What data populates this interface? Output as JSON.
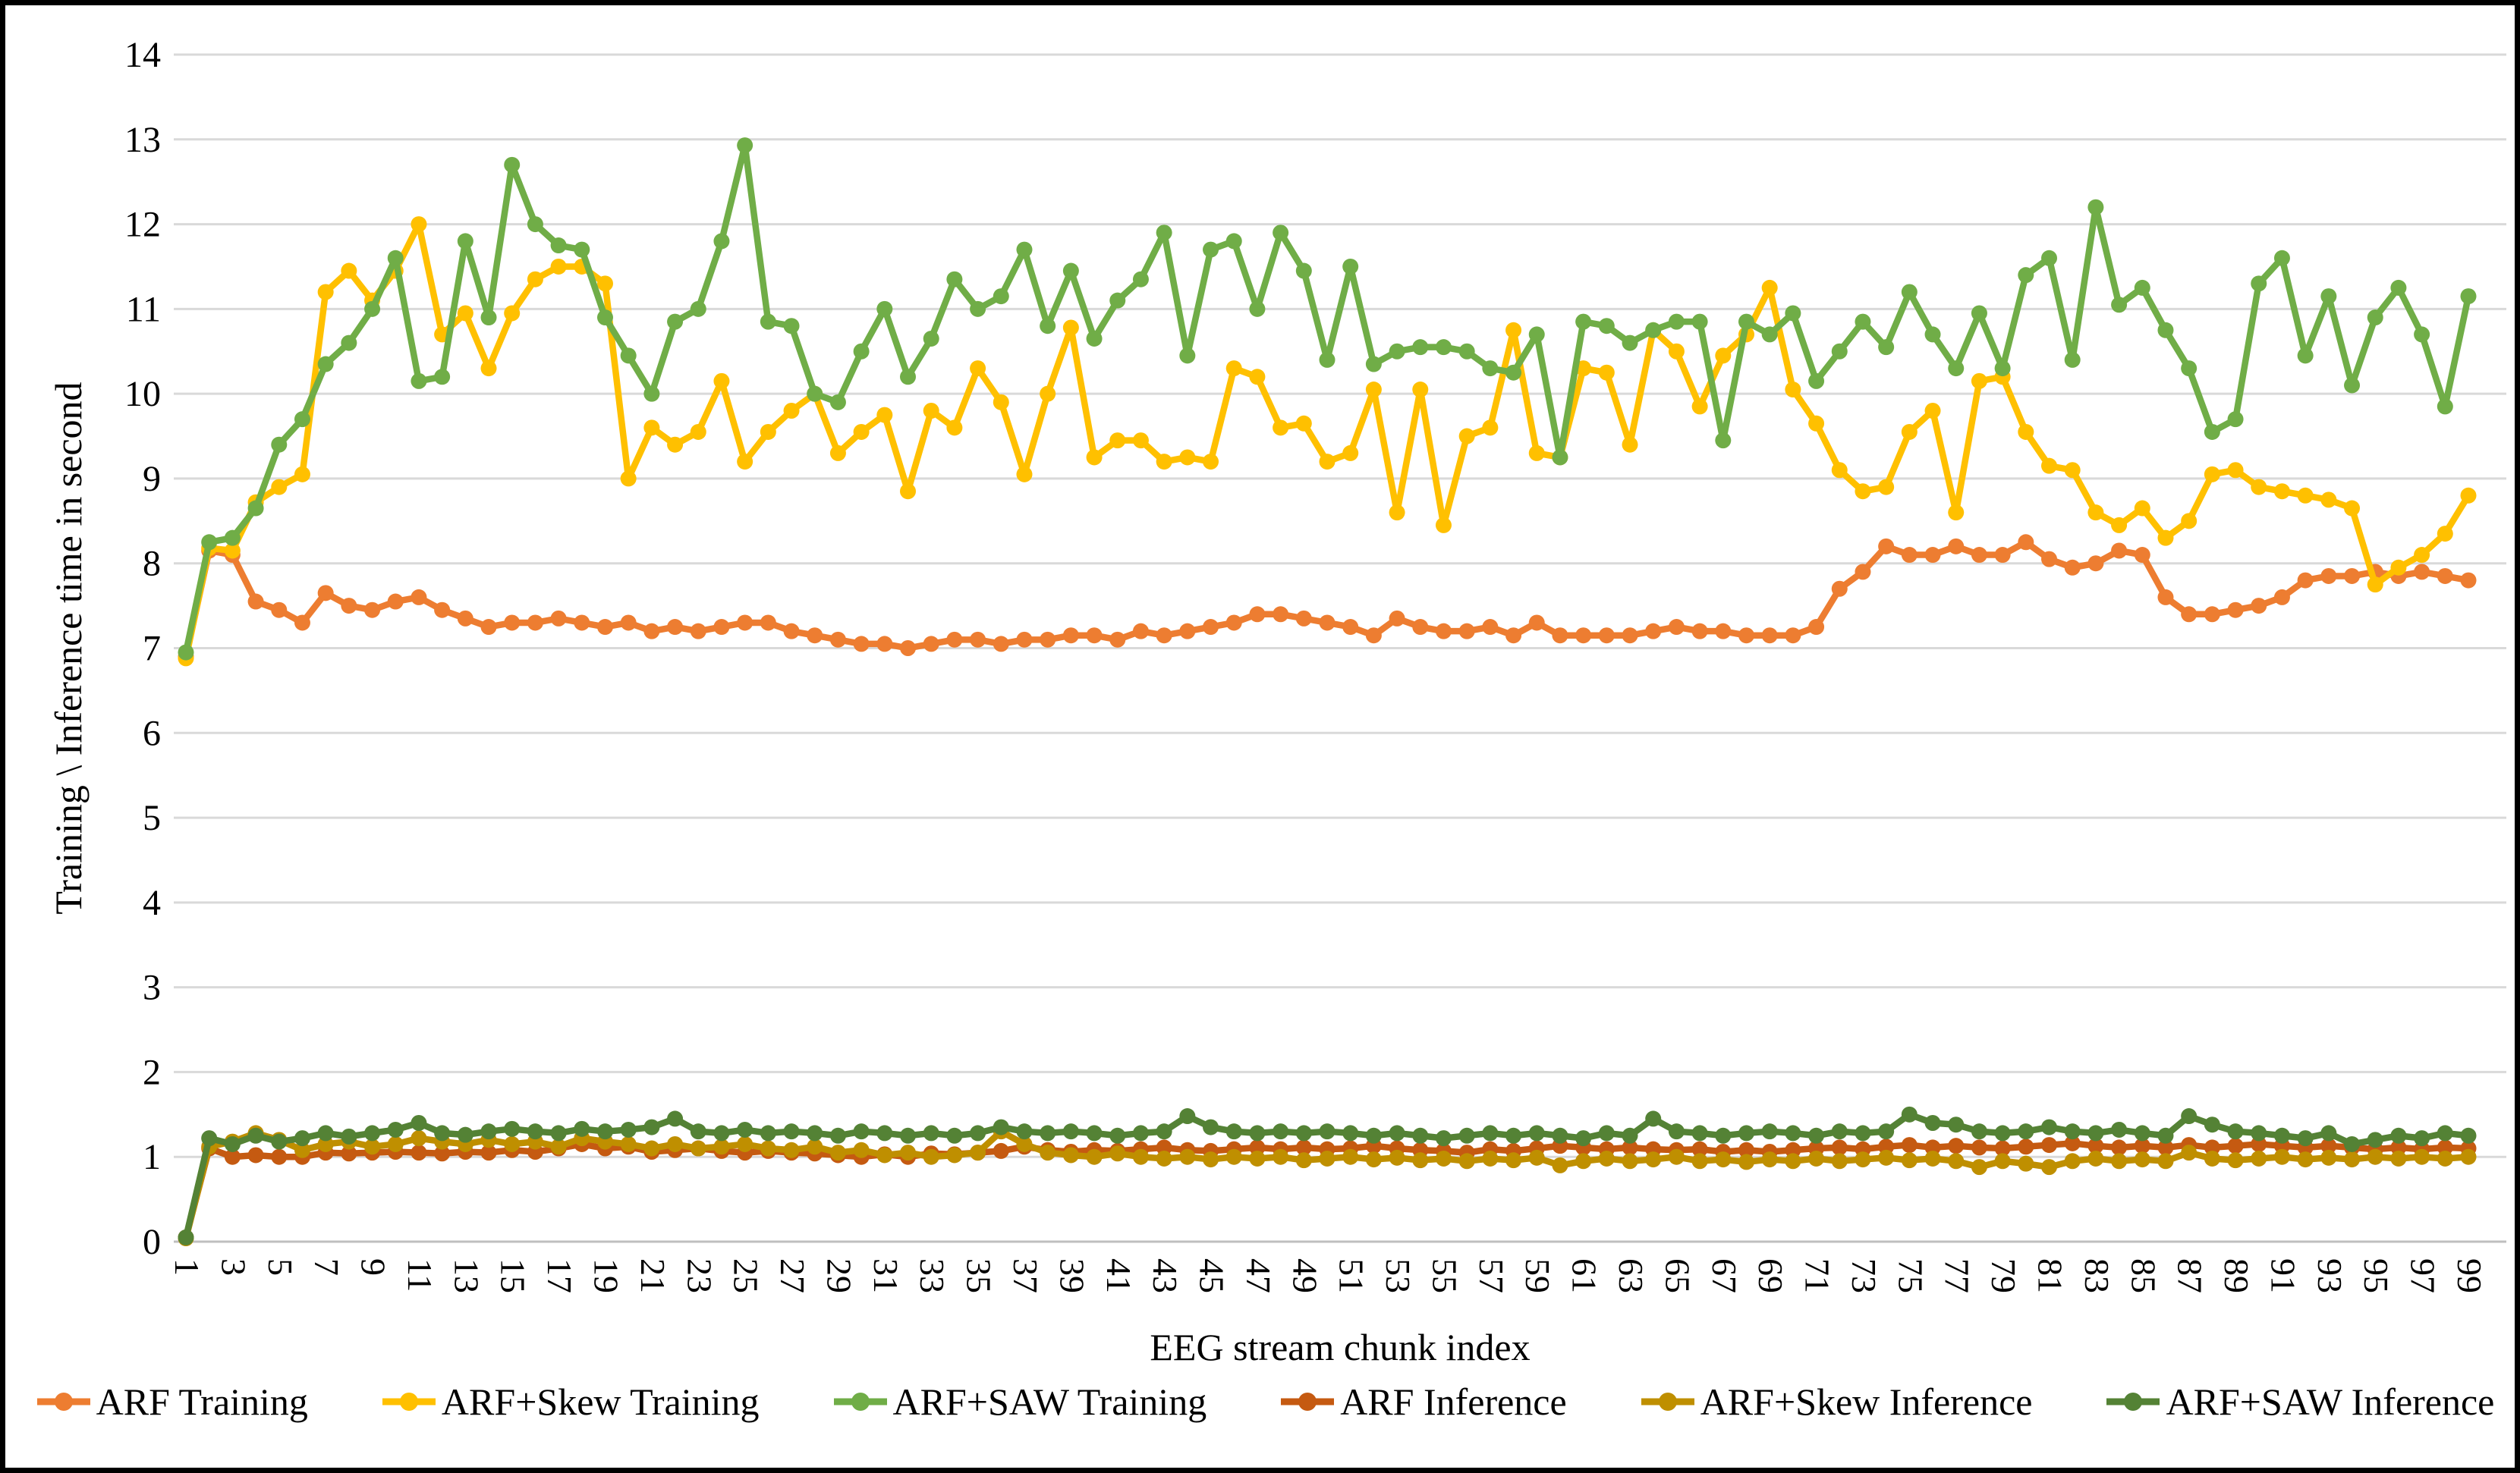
{
  "chart_data": {
    "type": "line",
    "title": "",
    "xlabel": "EEG stream chunk index",
    "ylabel": "Training \\ Inference time in second",
    "x_start": 1,
    "x_end": 99,
    "x_label_interval": 2,
    "ylim": [
      0,
      14
    ],
    "y_tick_step": 1,
    "grid": true,
    "legend_position": "bottom",
    "gridline_color": "#D9D9D9",
    "zero_line_color": "#BFBFBF",
    "series": [
      {
        "name": "ARF Training",
        "color": "#ED7D31",
        "values": [
          6.9,
          8.15,
          8.1,
          7.55,
          7.45,
          7.3,
          7.65,
          7.5,
          7.45,
          7.55,
          7.6,
          7.45,
          7.35,
          7.25,
          7.3,
          7.3,
          7.35,
          7.3,
          7.25,
          7.3,
          7.2,
          7.25,
          7.2,
          7.25,
          7.3,
          7.3,
          7.2,
          7.15,
          7.1,
          7.05,
          7.05,
          7.0,
          7.05,
          7.1,
          7.1,
          7.05,
          7.1,
          7.1,
          7.15,
          7.15,
          7.1,
          7.2,
          7.15,
          7.2,
          7.25,
          7.3,
          7.4,
          7.4,
          7.35,
          7.3,
          7.25,
          7.15,
          7.35,
          7.25,
          7.2,
          7.2,
          7.25,
          7.15,
          7.3,
          7.15,
          7.15,
          7.15,
          7.15,
          7.2,
          7.25,
          7.2,
          7.2,
          7.15,
          7.15,
          7.15,
          7.25,
          7.7,
          7.9,
          8.2,
          8.1,
          8.1,
          8.2,
          8.1,
          8.1,
          8.25,
          8.05,
          7.95,
          8.0,
          8.15,
          8.1,
          7.6,
          7.4,
          7.4,
          7.45,
          7.5,
          7.6,
          7.8,
          7.85,
          7.85,
          7.9,
          7.85,
          7.9,
          7.85,
          7.8
        ]
      },
      {
        "name": "ARF+Skew Training",
        "color": "#FFC000",
        "values": [
          6.88,
          8.18,
          8.15,
          8.72,
          8.9,
          9.05,
          11.2,
          11.45,
          11.1,
          11.45,
          12.0,
          10.7,
          10.95,
          10.3,
          10.95,
          11.35,
          11.5,
          11.5,
          11.3,
          9.0,
          9.6,
          9.4,
          9.55,
          10.15,
          9.2,
          9.55,
          9.8,
          10.0,
          9.3,
          9.55,
          9.75,
          8.85,
          9.8,
          9.6,
          10.3,
          9.9,
          9.05,
          10.0,
          10.78,
          9.25,
          9.45,
          9.45,
          9.2,
          9.25,
          9.2,
          10.3,
          10.2,
          9.6,
          9.65,
          9.2,
          9.3,
          10.05,
          8.6,
          10.05,
          8.45,
          9.5,
          9.6,
          10.75,
          9.3,
          9.25,
          10.3,
          10.25,
          9.4,
          10.75,
          10.5,
          9.85,
          10.45,
          10.7,
          11.25,
          10.05,
          9.65,
          9.1,
          8.85,
          8.9,
          9.55,
          9.8,
          8.6,
          10.15,
          10.2,
          9.55,
          9.15,
          9.1,
          8.6,
          8.45,
          8.65,
          8.3,
          8.5,
          9.05,
          9.1,
          8.9,
          8.85,
          8.8,
          8.75,
          8.65,
          7.75,
          7.95,
          8.1,
          8.35,
          8.8
        ]
      },
      {
        "name": "ARF+SAW Training",
        "color": "#70AD47",
        "values": [
          6.95,
          8.25,
          8.3,
          8.65,
          9.4,
          9.7,
          10.35,
          10.6,
          11.0,
          11.6,
          10.15,
          10.2,
          11.8,
          10.9,
          12.7,
          12.0,
          11.75,
          11.7,
          10.9,
          10.45,
          10.0,
          10.85,
          11.0,
          11.8,
          12.93,
          10.85,
          10.8,
          10.0,
          9.9,
          10.5,
          11.0,
          10.2,
          10.65,
          11.35,
          11.0,
          11.15,
          11.7,
          10.8,
          11.45,
          10.65,
          11.1,
          11.35,
          11.9,
          10.45,
          11.7,
          11.8,
          11.0,
          11.9,
          11.45,
          10.4,
          11.5,
          10.35,
          10.5,
          10.55,
          10.55,
          10.5,
          10.3,
          10.25,
          10.7,
          9.25,
          10.85,
          10.8,
          10.6,
          10.75,
          10.85,
          10.85,
          9.45,
          10.85,
          10.7,
          10.95,
          10.15,
          10.5,
          10.85,
          10.55,
          11.2,
          10.7,
          10.3,
          10.95,
          10.3,
          11.4,
          11.6,
          10.4,
          12.2,
          11.05,
          11.25,
          10.75,
          10.3,
          9.55,
          9.7,
          11.3,
          11.6,
          10.45,
          11.15,
          10.1,
          10.9,
          11.25,
          10.7,
          9.85,
          11.15
        ]
      },
      {
        "name": "ARF Inference",
        "color": "#C55A11",
        "values": [
          0.05,
          1.1,
          1.0,
          1.02,
          1.0,
          1.0,
          1.05,
          1.04,
          1.05,
          1.06,
          1.05,
          1.04,
          1.06,
          1.05,
          1.08,
          1.06,
          1.1,
          1.15,
          1.1,
          1.12,
          1.06,
          1.08,
          1.1,
          1.07,
          1.05,
          1.07,
          1.05,
          1.04,
          1.02,
          1.0,
          1.03,
          1.0,
          1.04,
          1.03,
          1.05,
          1.07,
          1.12,
          1.08,
          1.06,
          1.08,
          1.07,
          1.09,
          1.11,
          1.08,
          1.07,
          1.09,
          1.11,
          1.09,
          1.11,
          1.09,
          1.1,
          1.13,
          1.1,
          1.08,
          1.07,
          1.05,
          1.09,
          1.07,
          1.1,
          1.13,
          1.11,
          1.09,
          1.11,
          1.09,
          1.08,
          1.09,
          1.06,
          1.08,
          1.06,
          1.08,
          1.1,
          1.11,
          1.09,
          1.12,
          1.14,
          1.11,
          1.13,
          1.11,
          1.1,
          1.12,
          1.14,
          1.16,
          1.13,
          1.11,
          1.13,
          1.11,
          1.14,
          1.11,
          1.13,
          1.15,
          1.13,
          1.11,
          1.13,
          1.11,
          1.09,
          1.11,
          1.09,
          1.11,
          1.1
        ]
      },
      {
        "name": "ARF+Skew Inference",
        "color": "#BF8F00",
        "values": [
          0.04,
          1.12,
          1.18,
          1.28,
          1.2,
          1.08,
          1.15,
          1.18,
          1.12,
          1.15,
          1.22,
          1.18,
          1.15,
          1.2,
          1.15,
          1.18,
          1.12,
          1.22,
          1.18,
          1.15,
          1.1,
          1.15,
          1.1,
          1.12,
          1.15,
          1.1,
          1.08,
          1.12,
          1.05,
          1.08,
          1.02,
          1.05,
          1.0,
          1.02,
          1.05,
          1.3,
          1.15,
          1.05,
          1.02,
          1.0,
          1.04,
          1.0,
          0.98,
          1.0,
          0.97,
          1.0,
          0.98,
          1.0,
          0.96,
          0.98,
          1.0,
          0.97,
          0.99,
          0.96,
          0.98,
          0.95,
          0.98,
          0.96,
          0.99,
          0.9,
          0.95,
          0.98,
          0.95,
          0.97,
          1.0,
          0.95,
          0.97,
          0.94,
          0.97,
          0.95,
          0.98,
          0.95,
          0.97,
          0.99,
          0.96,
          0.98,
          0.95,
          0.88,
          0.95,
          0.92,
          0.88,
          0.95,
          0.98,
          0.95,
          0.97,
          0.95,
          1.05,
          0.98,
          0.96,
          0.98,
          1.0,
          0.97,
          0.99,
          0.97,
          1.0,
          0.98,
          1.0,
          0.98,
          1.0
        ]
      },
      {
        "name": "ARF+SAW Inference",
        "color": "#548235",
        "values": [
          0.05,
          1.22,
          1.15,
          1.25,
          1.18,
          1.22,
          1.28,
          1.24,
          1.28,
          1.32,
          1.4,
          1.28,
          1.26,
          1.3,
          1.33,
          1.3,
          1.28,
          1.33,
          1.3,
          1.32,
          1.35,
          1.45,
          1.3,
          1.28,
          1.32,
          1.28,
          1.3,
          1.28,
          1.25,
          1.3,
          1.28,
          1.25,
          1.28,
          1.25,
          1.28,
          1.35,
          1.3,
          1.28,
          1.3,
          1.28,
          1.25,
          1.28,
          1.3,
          1.48,
          1.35,
          1.3,
          1.28,
          1.3,
          1.28,
          1.3,
          1.28,
          1.25,
          1.28,
          1.25,
          1.22,
          1.25,
          1.28,
          1.25,
          1.28,
          1.25,
          1.22,
          1.28,
          1.25,
          1.45,
          1.3,
          1.28,
          1.25,
          1.28,
          1.3,
          1.28,
          1.25,
          1.3,
          1.28,
          1.3,
          1.5,
          1.4,
          1.38,
          1.3,
          1.28,
          1.3,
          1.35,
          1.3,
          1.28,
          1.32,
          1.28,
          1.25,
          1.48,
          1.38,
          1.3,
          1.28,
          1.25,
          1.22,
          1.28,
          1.15,
          1.2,
          1.25,
          1.22,
          1.28,
          1.25
        ]
      }
    ]
  },
  "axes": {
    "x_title": "EEG stream chunk index",
    "y_title": "Training \\ Inference time in second"
  },
  "legend": {
    "items": [
      {
        "label": "ARF Training"
      },
      {
        "label": "ARF+Skew Training"
      },
      {
        "label": "ARF+SAW Training"
      },
      {
        "label": "ARF Inference"
      },
      {
        "label": "ARF+Skew Inference"
      },
      {
        "label": "ARF+SAW Inference"
      }
    ]
  }
}
